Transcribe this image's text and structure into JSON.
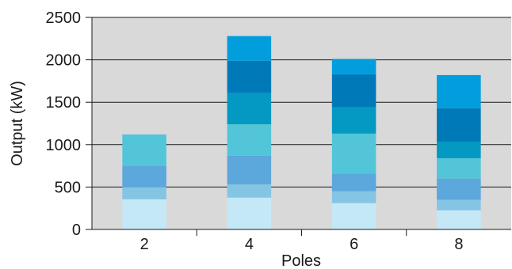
{
  "chart_data": {
    "type": "bar",
    "stacked": true,
    "categories": [
      "2",
      "4",
      "6",
      "8"
    ],
    "xlabel": "Poles",
    "ylabel": "Output (kW)",
    "ylim": [
      0,
      2500
    ],
    "yticks": [
      0,
      500,
      1000,
      1500,
      2000,
      2500
    ],
    "grid": true,
    "legend": "none",
    "plot_background": "#d9d9d9",
    "series": [
      {
        "color": "#c5e8f7",
        "values": [
          355,
          375,
          310,
          225
        ]
      },
      {
        "color": "#84c5e4",
        "values": [
          145,
          155,
          140,
          125
        ]
      },
      {
        "color": "#5ca7dc",
        "values": [
          250,
          340,
          210,
          250
        ]
      },
      {
        "color": "#52c5d9",
        "values": [
          370,
          370,
          470,
          240
        ]
      },
      {
        "color": "#0399c3",
        "values": [
          0,
          370,
          310,
          195
        ]
      },
      {
        "color": "#0079b9",
        "values": [
          0,
          380,
          390,
          395
        ]
      },
      {
        "color": "#019ddc",
        "values": [
          0,
          290,
          180,
          390
        ]
      }
    ]
  }
}
